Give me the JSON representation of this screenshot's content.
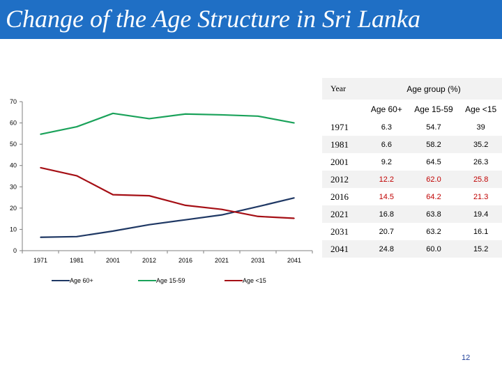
{
  "slide": {
    "title": "Change of the Age Structure in Sri Lanka",
    "page_number": "12"
  },
  "table": {
    "year_header": "Year",
    "group_header": "Age group (%)",
    "columns": [
      "Age  60+",
      "Age 15-59",
      "Age <15"
    ],
    "rows": [
      {
        "year": "1971",
        "values": [
          "6.3",
          "54.7",
          "39"
        ],
        "highlight": false
      },
      {
        "year": "1981",
        "values": [
          "6.6",
          "58.2",
          "35.2"
        ],
        "highlight": false
      },
      {
        "year": "2001",
        "values": [
          "9.2",
          "64.5",
          "26.3"
        ],
        "highlight": false
      },
      {
        "year": "2012",
        "values": [
          "12.2",
          "62.0",
          "25.8"
        ],
        "highlight": true
      },
      {
        "year": "2016",
        "values": [
          "14.5",
          "64.2",
          "21.3"
        ],
        "highlight": true
      },
      {
        "year": "2021",
        "values": [
          "16.8",
          "63.8",
          "19.4"
        ],
        "highlight": false
      },
      {
        "year": "2031",
        "values": [
          "20.7",
          "63.2",
          "16.1"
        ],
        "highlight": false
      },
      {
        "year": "2041",
        "values": [
          "24.8",
          "60.0",
          "15.2"
        ],
        "highlight": false
      }
    ]
  },
  "chart_data": {
    "type": "line",
    "categories": [
      "1971",
      "1981",
      "2001",
      "2012",
      "2016",
      "2021",
      "2031",
      "2041"
    ],
    "series": [
      {
        "name": "Age 60+",
        "color": "#1f3864",
        "values": [
          6.3,
          6.6,
          9.2,
          12.2,
          14.5,
          16.8,
          20.7,
          24.8
        ]
      },
      {
        "name": "Age 15-59",
        "color": "#1aa25a",
        "values": [
          54.7,
          58.2,
          64.5,
          62.0,
          64.2,
          63.8,
          63.2,
          60.0
        ]
      },
      {
        "name": "Age <15",
        "color": "#a50f15",
        "values": [
          39,
          35.2,
          26.3,
          25.8,
          21.3,
          19.4,
          16.1,
          15.2
        ]
      }
    ],
    "ylim": [
      0,
      70
    ],
    "yticks": [
      0,
      10,
      20,
      30,
      40,
      50,
      60,
      70
    ],
    "grid": false,
    "legend": "bottom"
  }
}
